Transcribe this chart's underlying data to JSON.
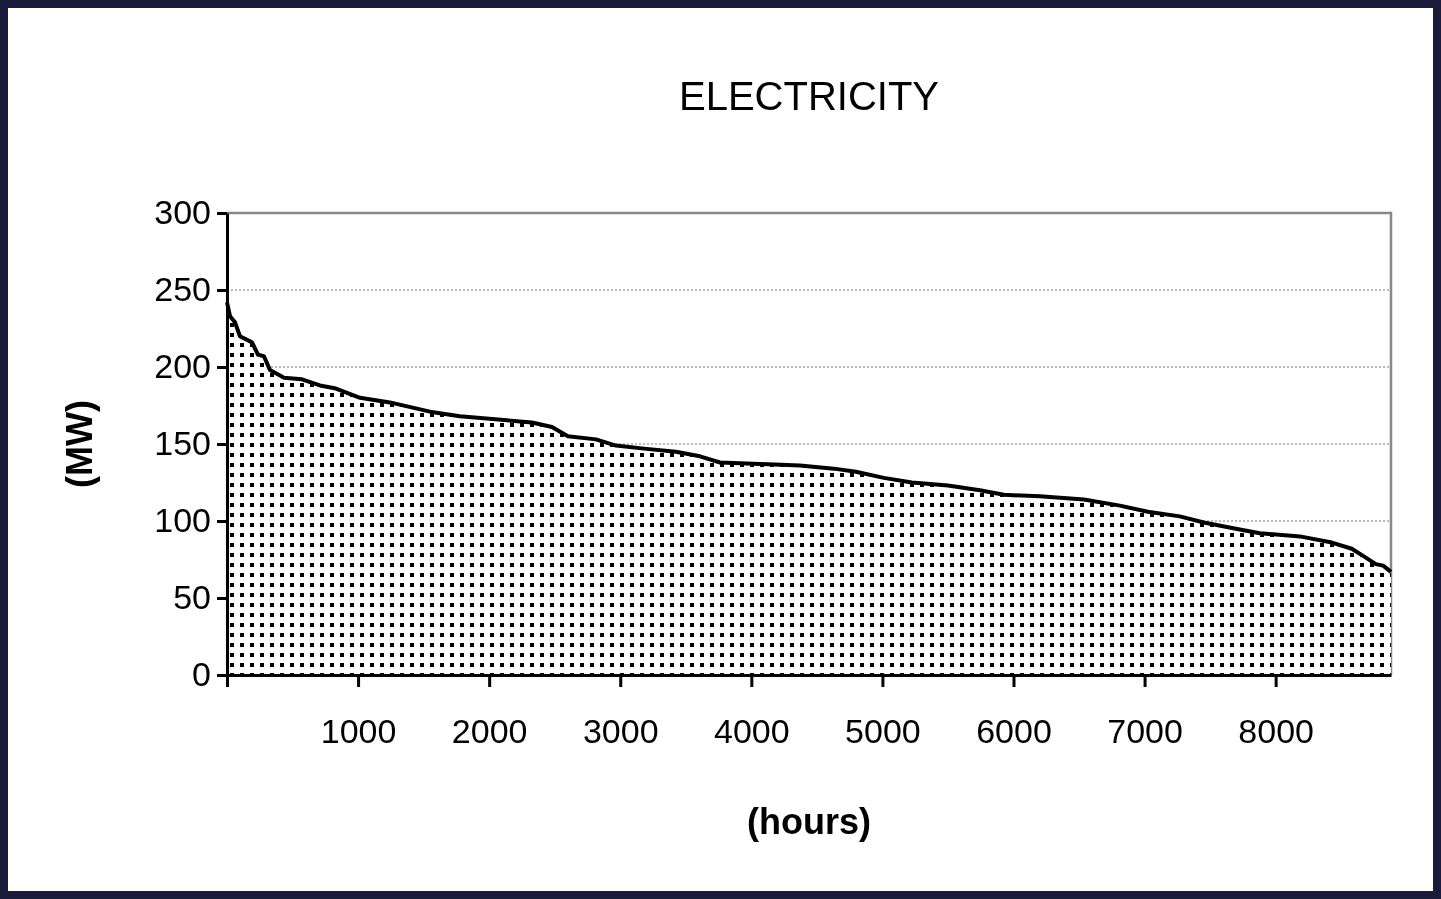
{
  "chart_data": {
    "type": "area",
    "title": "ELECTRICITY",
    "xlabel": "(hours)",
    "ylabel": "(MW)",
    "xlim": [
      0,
      8880
    ],
    "xticks": [
      {
        "value": 0,
        "label": null
      },
      1000,
      2000,
      3000,
      4000,
      5000,
      6000,
      7000,
      8000
    ],
    "ylim": [
      0,
      300
    ],
    "yticks": [
      0,
      50,
      100,
      150,
      200,
      250,
      300
    ],
    "grid": "y",
    "series": [
      {
        "color": "#000000",
        "x": [
          0,
          23,
          61,
          99,
          191,
          236,
          282,
          328,
          435,
          572,
          709,
          831,
          1015,
          1243,
          1548,
          1777,
          2327,
          2479,
          2601,
          2815,
          2967,
          3181,
          3425,
          3608,
          3761,
          4066,
          4371,
          4630,
          4798,
          5011,
          5225,
          5500,
          5744,
          5927,
          6201,
          6537,
          6812,
          7025,
          7269,
          7452,
          7696,
          7880,
          8185,
          8429,
          8581,
          8673,
          8764,
          8820,
          8880
        ],
        "values": [
          242,
          233,
          229,
          220,
          216,
          208,
          207,
          198,
          193,
          192,
          188,
          186,
          180,
          177,
          171,
          168,
          164,
          161,
          155,
          153,
          149,
          147,
          145,
          142,
          138,
          137,
          136,
          134,
          132,
          128,
          125,
          123,
          120,
          117,
          116,
          114,
          110,
          106,
          103,
          99,
          95,
          92,
          90,
          86,
          82,
          77,
          72,
          71,
          67
        ]
      }
    ]
  }
}
